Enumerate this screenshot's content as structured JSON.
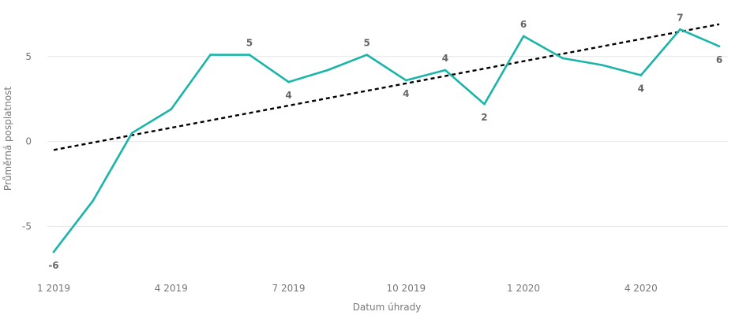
{
  "chart_data": {
    "type": "line",
    "title": "",
    "xlabel": "Datum úhrady",
    "ylabel": "Průměrná posplatnost",
    "ylim": [
      -7.9,
      7.4
    ],
    "yticks": [
      -5,
      0,
      5
    ],
    "ytick_labels": [
      "-5",
      "0",
      "5"
    ],
    "x_tick_indices": [
      0,
      3,
      6,
      9,
      12,
      15
    ],
    "x_tick_labels": [
      "1 2019",
      "4 2019",
      "7 2019",
      "10 2019",
      "1 2020",
      "4 2020"
    ],
    "grid": true,
    "series": [
      {
        "name": "Průměrná posplatnost",
        "color": "#1AB5A8",
        "values": [
          -6.5,
          -3.5,
          0.5,
          1.9,
          5.1,
          5.1,
          3.5,
          4.2,
          5.1,
          3.6,
          4.2,
          2.2,
          6.2,
          4.9,
          4.5,
          3.9,
          6.6,
          5.6
        ]
      }
    ],
    "trendline": {
      "name": "Trend",
      "color": "#000000",
      "start_value": -0.5,
      "end_value": 6.9
    },
    "data_labels": [
      {
        "index": 0,
        "text": "-6",
        "position": "below"
      },
      {
        "index": 5,
        "text": "5",
        "position": "above"
      },
      {
        "index": 6,
        "text": "4",
        "position": "below"
      },
      {
        "index": 8,
        "text": "5",
        "position": "above"
      },
      {
        "index": 9,
        "text": "4",
        "position": "below"
      },
      {
        "index": 10,
        "text": "4",
        "position": "above"
      },
      {
        "index": 11,
        "text": "2",
        "position": "below"
      },
      {
        "index": 12,
        "text": "6",
        "position": "above"
      },
      {
        "index": 15,
        "text": "4",
        "position": "below"
      },
      {
        "index": 16,
        "text": "7",
        "position": "above"
      },
      {
        "index": 17,
        "text": "6",
        "position": "below"
      }
    ]
  }
}
